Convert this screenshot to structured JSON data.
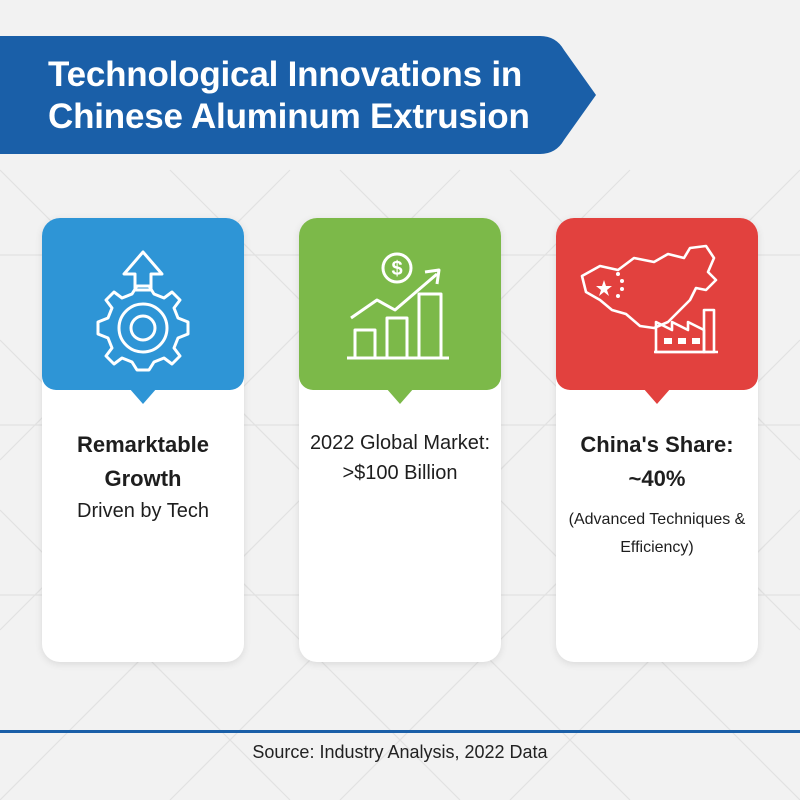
{
  "header": {
    "title": "Technological Innovations in Chinese Aluminum Extrusion"
  },
  "cards": [
    {
      "color": "#2e95d6",
      "icon": "gear-arrow-up-icon",
      "title": "Remarktable Growth",
      "subtitle": "Driven by Tech"
    },
    {
      "color": "#7cb949",
      "icon": "rising-bar-chart-dollar-icon",
      "text": "2022 Global Market: >$100 Billion"
    },
    {
      "color": "#e2413e",
      "icon": "china-map-factory-icon",
      "title": "China's Share: ~40%",
      "note": "(Advanced Techniques & Efficiency)"
    }
  ],
  "footer": {
    "source": "Source: Industry Analysis, 2022 Data"
  },
  "colors": {
    "banner": "#1a5fa8",
    "footer_line": "#1a5fa8",
    "background": "#f2f2f2"
  }
}
